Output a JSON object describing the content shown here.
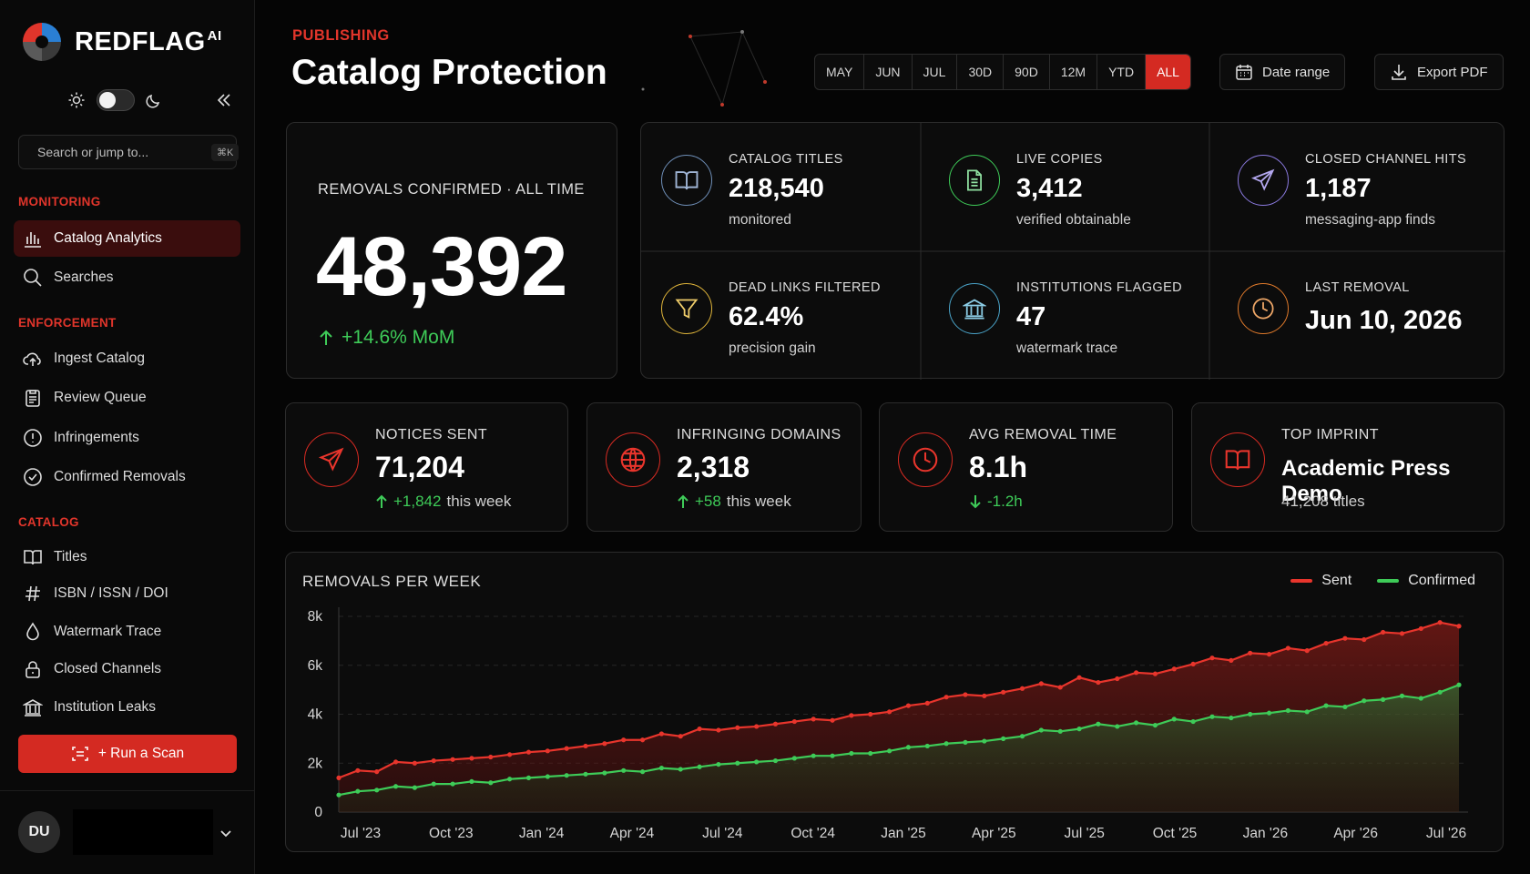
{
  "brand": {
    "name": "REDFLAG",
    "suffix": "AI"
  },
  "sidebar": {
    "search_placeholder": "Search or jump to...",
    "search_shortcut": "⌘K",
    "sections": {
      "monitoring": "MONITORING",
      "enforcement": "ENFORCEMENT",
      "catalog": "CATALOG"
    },
    "items": [
      {
        "label": "Catalog Analytics",
        "icon": "bar-chart-icon",
        "active": true
      },
      {
        "label": "Searches",
        "icon": "search-icon"
      },
      {
        "label": "Ingest Catalog",
        "icon": "cloud-upload-icon"
      },
      {
        "label": "Review Queue",
        "icon": "clipboard-icon"
      },
      {
        "label": "Infringements",
        "icon": "alert-icon"
      },
      {
        "label": "Confirmed Removals",
        "icon": "check-circle-icon"
      },
      {
        "label": "Titles",
        "icon": "book-icon"
      },
      {
        "label": "ISBN / ISSN / DOI",
        "icon": "hash-icon"
      },
      {
        "label": "Watermark Trace",
        "icon": "droplet-icon"
      },
      {
        "label": "Closed Channels",
        "icon": "lock-icon"
      },
      {
        "label": "Institution Leaks",
        "icon": "institution-icon"
      }
    ],
    "run_scan_label": "+ Run a Scan",
    "user_initials": "DU"
  },
  "header": {
    "eyebrow": "PUBLISHING",
    "title": "Catalog Protection",
    "ranges": [
      "MAY",
      "JUN",
      "JUL",
      "30D",
      "90D",
      "12M",
      "YTD",
      "ALL"
    ],
    "active_range": "ALL",
    "date_range_label": "Date range",
    "export_label": "Export PDF"
  },
  "hero": {
    "label": "REMOVALS CONFIRMED · ALL TIME",
    "value": "48,392",
    "delta": "+14.6% MoM"
  },
  "stats": [
    {
      "label": "CATALOG TITLES",
      "value": "218,540",
      "sub": "monitored",
      "icon": "book-open-icon",
      "color": "#6f8fb8"
    },
    {
      "label": "LIVE COPIES",
      "value": "3,412",
      "sub": "verified obtainable",
      "icon": "document-icon",
      "color": "#3ecb58"
    },
    {
      "label": "CLOSED CHANNEL HITS",
      "value": "1,187",
      "sub": "messaging-app finds",
      "icon": "send-icon",
      "color": "#8b7ae0"
    },
    {
      "label": "DEAD LINKS FILTERED",
      "value": "62.4%",
      "sub": "precision gain",
      "icon": "filter-icon",
      "color": "#e0b53a"
    },
    {
      "label": "INSTITUTIONS FLAGGED",
      "value": "47",
      "sub": "watermark trace",
      "icon": "institution-icon",
      "color": "#4aa3c8"
    },
    {
      "label": "LAST REMOVAL",
      "value": "Jun 10, 2026",
      "sub": "",
      "icon": "clock-icon",
      "color": "#e07a2b"
    }
  ],
  "metrics": [
    {
      "label": "NOTICES SENT",
      "value": "71,204",
      "delta": "+1,842",
      "delta_suffix": "this week",
      "icon": "send-icon"
    },
    {
      "label": "INFRINGING DOMAINS",
      "value": "2,318",
      "delta": "+58",
      "delta_suffix": "this week",
      "icon": "globe-icon"
    },
    {
      "label": "AVG REMOVAL TIME",
      "value": "8.1h",
      "delta": "-1.2h",
      "delta_suffix": "",
      "icon": "clock-icon"
    },
    {
      "label": "TOP IMPRINT",
      "value": "Academic Press Demo",
      "sub": "41,208 titles",
      "icon": "book-open-icon"
    }
  ],
  "chart": {
    "title": "REMOVALS PER WEEK",
    "legend": [
      {
        "name": "Sent",
        "color": "#e8352c"
      },
      {
        "name": "Confirmed",
        "color": "#3ecb58"
      }
    ]
  },
  "chart_data": {
    "type": "area",
    "title": "REMOVALS PER WEEK",
    "x_ticks": [
      "Jul '23",
      "Oct '23",
      "Jan '24",
      "Apr '24",
      "Jul '24",
      "Oct '24",
      "Jan '25",
      "Apr '25",
      "Jul '25",
      "Oct '25",
      "Jan '26",
      "Apr '26",
      "Jul '26"
    ],
    "y_ticks": [
      "0",
      "2k",
      "4k",
      "6k",
      "8k"
    ],
    "ylim": [
      0,
      8000
    ],
    "grid": true,
    "legend_position": "top-right",
    "series": [
      {
        "name": "Sent",
        "color": "#e8352c",
        "values": [
          1400,
          1700,
          1650,
          2050,
          2000,
          2100,
          2150,
          2200,
          2250,
          2350,
          2450,
          2500,
          2600,
          2700,
          2800,
          2950,
          2950,
          3200,
          3100,
          3400,
          3350,
          3450,
          3500,
          3600,
          3700,
          3800,
          3750,
          3950,
          4000,
          4100,
          4350,
          4450,
          4700,
          4800,
          4750,
          4900,
          5050,
          5250,
          5100,
          5500,
          5300,
          5450,
          5700,
          5650,
          5850,
          6050,
          6300,
          6200,
          6500,
          6450,
          6700,
          6600,
          6900,
          7100,
          7050,
          7350,
          7300,
          7500,
          7750,
          7600
        ]
      },
      {
        "name": "Confirmed",
        "color": "#3ecb58",
        "values": [
          700,
          850,
          900,
          1050,
          1000,
          1150,
          1150,
          1250,
          1200,
          1350,
          1400,
          1450,
          1500,
          1550,
          1600,
          1700,
          1650,
          1800,
          1750,
          1850,
          1950,
          2000,
          2050,
          2100,
          2200,
          2300,
          2300,
          2400,
          2400,
          2500,
          2650,
          2700,
          2800,
          2850,
          2900,
          3000,
          3100,
          3350,
          3300,
          3400,
          3600,
          3500,
          3650,
          3550,
          3800,
          3700,
          3900,
          3850,
          4000,
          4050,
          4150,
          4100,
          4350,
          4300,
          4550,
          4600,
          4750,
          4650,
          4900,
          5200
        ]
      }
    ]
  }
}
